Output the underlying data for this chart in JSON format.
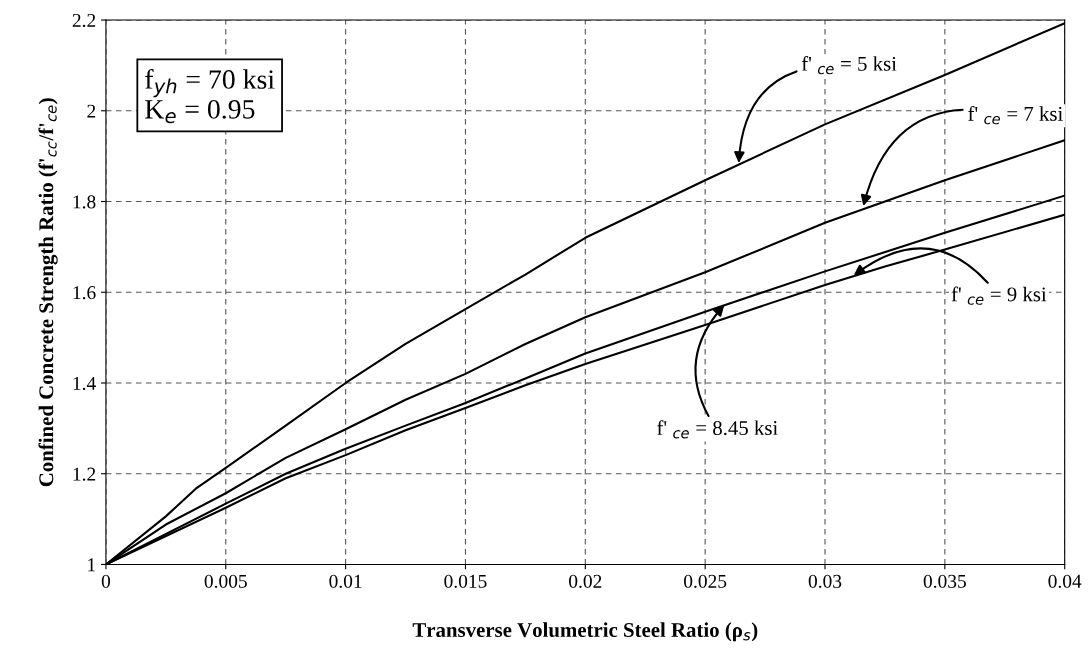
{
  "chart_data": {
    "type": "line",
    "xlabel": "Transverse Volumetric Steel Ratio (ρ$_{s}$)",
    "ylabel": "Confined Concrete Strength Ratio (f'$_{cc}$/f'$_{ce}$)",
    "xlim": [
      0,
      0.04
    ],
    "xticks": [
      0,
      0.005,
      0.01,
      0.015,
      0.02,
      0.025,
      0.03,
      0.035,
      0.04
    ],
    "ylim": [
      1,
      2.2
    ],
    "yticks": [
      1,
      1.2,
      1.4,
      1.6,
      1.8,
      2,
      2.2
    ],
    "grid": true,
    "line_style": "solid",
    "marker": "none",
    "series": [
      {
        "color": "#000000",
        "x": [
          0,
          0.0025,
          0.00375,
          0.005,
          0.0075,
          0.01,
          0.0125,
          0.015,
          0.0175,
          0.02,
          0.025,
          0.03,
          0.035,
          0.04
        ],
        "values": [
          1,
          1.106,
          1.167,
          1.213,
          1.306,
          1.4,
          1.486,
          1.563,
          1.639,
          1.72,
          1.847,
          1.97,
          2.079,
          2.193
        ]
      },
      {
        "color": "#000000",
        "x": [
          0,
          0.0025,
          0.005,
          0.0075,
          0.01,
          0.0125,
          0.015,
          0.0175,
          0.02,
          0.025,
          0.03,
          0.035,
          0.04
        ],
        "values": [
          1,
          1.088,
          1.157,
          1.235,
          1.298,
          1.363,
          1.42,
          1.486,
          1.545,
          1.644,
          1.753,
          1.847,
          1.935
        ]
      },
      {
        "color": "#000000",
        "x": [
          0,
          0.005,
          0.0075,
          0.01,
          0.0125,
          0.015,
          0.0175,
          0.02,
          0.025,
          0.03,
          0.035,
          0.04
        ],
        "values": [
          1,
          1.134,
          1.2,
          1.255,
          1.306,
          1.356,
          1.41,
          1.465,
          1.557,
          1.646,
          1.731,
          1.813
        ]
      },
      {
        "color": "#000000",
        "x": [
          0,
          0.005,
          0.0075,
          0.01,
          0.0125,
          0.015,
          0.0175,
          0.02,
          0.025,
          0.03,
          0.0325,
          0.035,
          0.04
        ],
        "values": [
          1,
          1.125,
          1.19,
          1.241,
          1.296,
          1.345,
          1.395,
          1.442,
          1.528,
          1.616,
          1.657,
          1.694,
          1.771
        ]
      }
    ],
    "annotations": [
      "f$_{yh}$ = 70 ksi\nK$_{e}$ = 0.95",
      {
        "text": "f' $_{ce}$ = 5 ksi",
        "x": 0.0264,
        "y": 1.885
      },
      {
        "text": "f' $_{ce}$ = 7 ksi",
        "x": 0.0316,
        "y": 1.79
      },
      {
        "text": "f' $_{ce}$ = 9 ksi",
        "x": 0.0312,
        "y": 1.637
      },
      {
        "text": "f' $_{ce}$ = 8.45 ksi",
        "x": 0.0258,
        "y": 1.572
      }
    ]
  }
}
